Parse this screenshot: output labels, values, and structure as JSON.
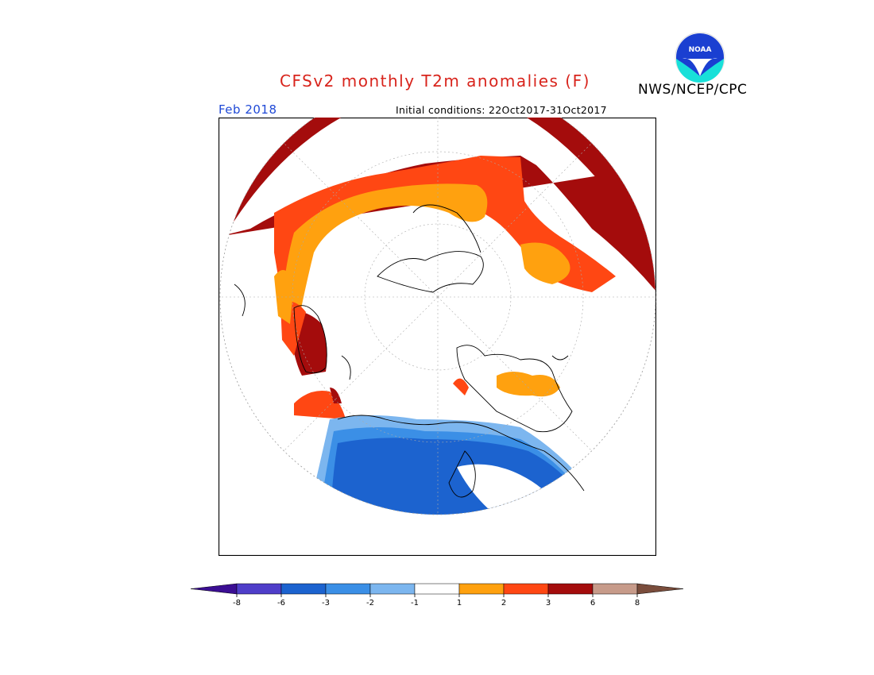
{
  "title": "CFSv2 monthly T2m anomalies (F)",
  "agency": "NWS/NCEP/CPC",
  "logo_text": "NOAA",
  "valid_period": "Feb 2018",
  "initial_conditions": "Initial conditions: 22Oct2017-31Oct2017",
  "colors": {
    "title": "#d8241c",
    "period": "#1f49d6"
  },
  "legend": {
    "levels": [
      {
        "range": "< -8",
        "color": "#3b0e93"
      },
      {
        "range": "-8 to -6",
        "color": "#4f3ec9"
      },
      {
        "range": "-6 to -3",
        "color": "#1c63cf"
      },
      {
        "range": "-3 to -2",
        "color": "#3b8fe6"
      },
      {
        "range": "-2 to -1",
        "color": "#7cb6ef"
      },
      {
        "range": "-1 to 1",
        "color": "#ffffff"
      },
      {
        "range": "1 to 2",
        "color": "#ffa10f"
      },
      {
        "range": "2 to 3",
        "color": "#ff4713"
      },
      {
        "range": "3 to 6",
        "color": "#a40c0c"
      },
      {
        "range": "6 to 8",
        "color": "#c79b8a"
      },
      {
        "range": "> 8",
        "color": "#7a4d3c"
      }
    ],
    "tick_labels": [
      "-8",
      "-6",
      "-3",
      "-2",
      "-1",
      "1",
      "2",
      "3",
      "6",
      "8"
    ]
  }
}
